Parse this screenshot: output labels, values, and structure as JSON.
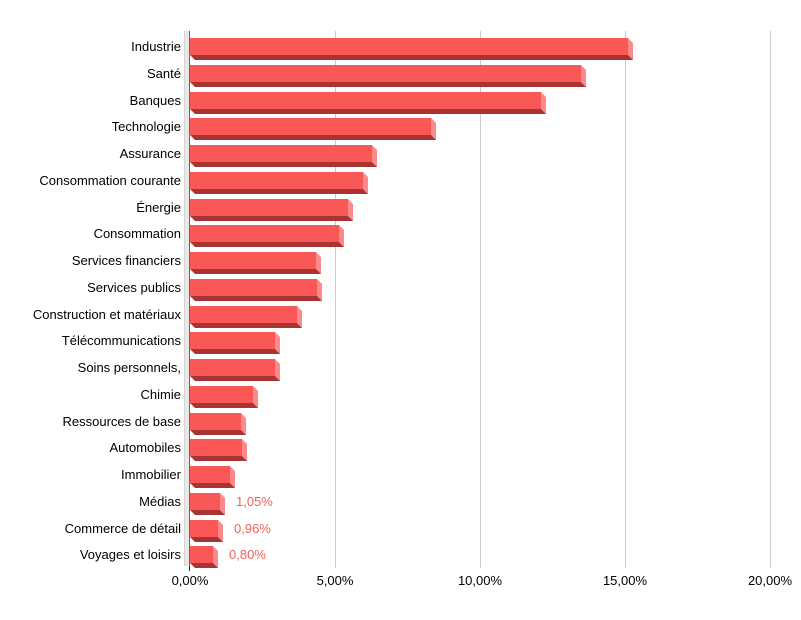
{
  "chart_data": {
    "type": "bar",
    "orientation": "horizontal",
    "title": "",
    "xlabel": "",
    "ylabel": "",
    "xlim": [
      0,
      20
    ],
    "grid": true,
    "legend": false,
    "categories": [
      "Industrie",
      "Santé",
      "Banques",
      "Technologie",
      "Assurance",
      "Consommation courante",
      "Énergie",
      "Consommation",
      "Services financiers",
      "Services publics",
      "Construction et matériaux",
      "Télécommunications",
      "Soins personnels,",
      "Chimie",
      "Ressources de base",
      "Automobiles",
      "Immobilier",
      "Médias",
      "Commerce de détail",
      "Voyages et loisirs"
    ],
    "values": [
      15.1,
      13.48,
      12.11,
      8.31,
      6.27,
      5.97,
      5.45,
      5.15,
      4.35,
      4.38,
      3.7,
      2.92,
      2.94,
      2.17,
      1.77,
      1.8,
      1.38,
      1.05,
      0.96,
      0.8
    ],
    "value_labels": [
      "",
      "",
      "",
      "",
      "",
      "",
      "",
      "",
      "",
      "",
      "",
      "",
      "",
      "",
      "",
      "",
      "",
      "1,05%",
      "0,96%",
      "0,80%"
    ],
    "x_ticks": [
      {
        "value": 0,
        "label": "0,00%"
      },
      {
        "value": 5,
        "label": "5,00%"
      },
      {
        "value": 10,
        "label": "10,00%"
      },
      {
        "value": 15,
        "label": "15,00%"
      },
      {
        "value": 20,
        "label": "20,00%"
      }
    ],
    "colors": {
      "bar_face": "#fa5757",
      "bar_side": "#fc8a8a",
      "bar_bottom": "#a83333",
      "value_label": "#f25f5f",
      "gridline": "#cccccc",
      "axis_line": "#666666",
      "wall": "#e8e8e8",
      "text": "#000000",
      "background": "#ffffff"
    }
  }
}
